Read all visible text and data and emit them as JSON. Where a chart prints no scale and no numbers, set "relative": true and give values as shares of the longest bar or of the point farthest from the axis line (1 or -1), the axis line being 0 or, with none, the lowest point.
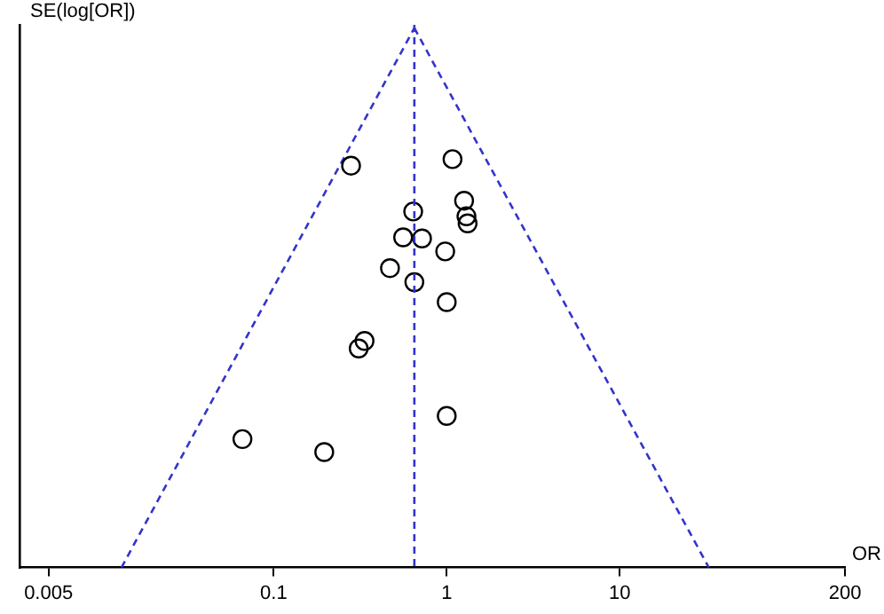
{
  "chart_data": {
    "type": "scatter",
    "ylabel": "SE(log[OR])",
    "xlabel": "OR",
    "log": "x",
    "relative": true,
    "tick_labels": "x",
    "grid": false,
    "legend": false,
    "xlim": [
      0.0034,
      200
    ],
    "xticks": [
      0.005,
      0.1,
      1,
      10,
      200
    ],
    "series": [
      {
        "color": "#000000",
        "marker": "circle",
        "x": [
          0.28,
          1.08,
          0.64,
          1.26,
          1.3,
          1.32,
          0.56,
          0.72,
          0.98,
          0.47,
          0.65,
          1.0,
          0.335,
          0.31,
          1.0,
          0.066,
          0.196
        ],
        "values": [
          0.745,
          0.757,
          0.66,
          0.68,
          0.651,
          0.638,
          0.612,
          0.61,
          0.586,
          0.555,
          0.529,
          0.492,
          0.42,
          0.406,
          0.281,
          0.238,
          0.214
        ]
      },
      {
        "type": "line",
        "color": "#3333cc",
        "marker": "none",
        "line_style": "dashed",
        "x": [
          0.0132,
          0.65
        ],
        "values": [
          0,
          1
        ]
      },
      {
        "type": "line",
        "color": "#3333cc",
        "marker": "none",
        "line_style": "dashed",
        "x": [
          0.65,
          32.7
        ],
        "values": [
          1,
          0
        ]
      }
    ],
    "ref_lines": [
      {
        "axis": "x",
        "value": 0.65,
        "color": "#3333cc",
        "line_style": "dashed"
      }
    ]
  }
}
